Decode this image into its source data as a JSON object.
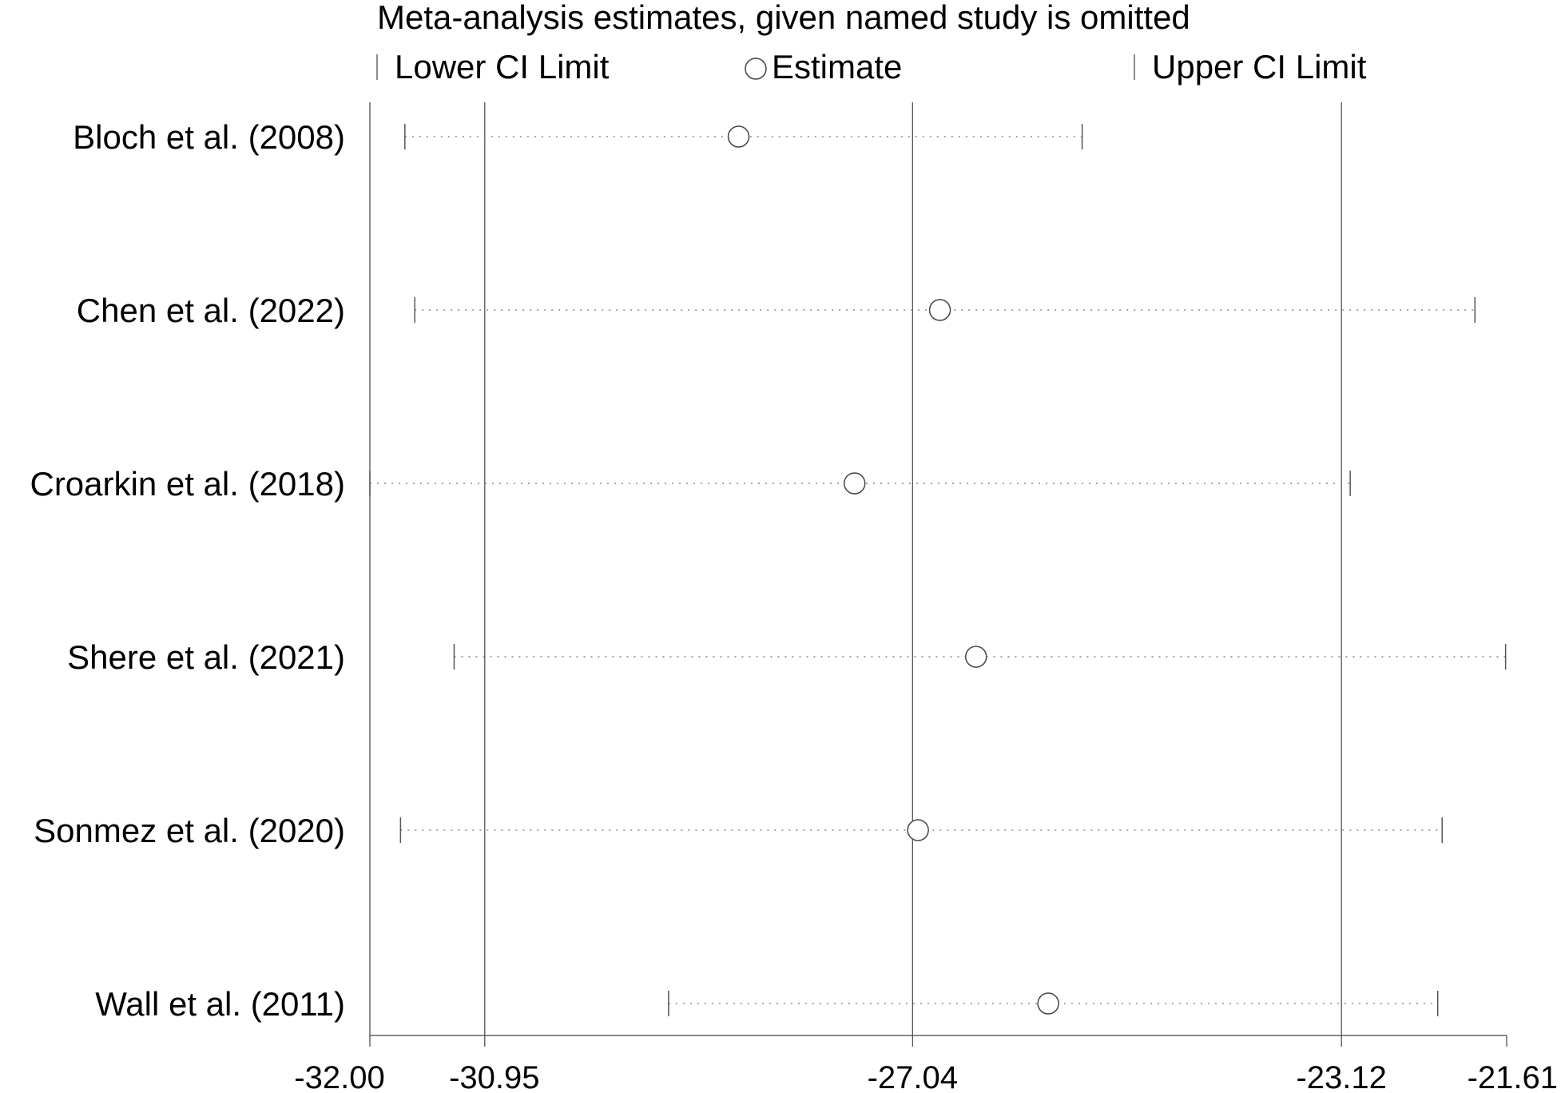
{
  "chart_data": {
    "type": "forest",
    "title": "Meta-analysis estimates, given named study is omitted",
    "legend": {
      "lower": "Lower CI Limit",
      "estimate": "Estimate",
      "upper": "Upper CI Limit"
    },
    "xlim": [
      -32.0,
      -21.61
    ],
    "xticks": [
      -32.0,
      -30.95,
      -27.04,
      -23.12,
      -21.61
    ],
    "xtick_labels": [
      "-32.00",
      "-30.95",
      "-27.04",
      "-23.12",
      "-21.61"
    ],
    "reference_lines": [
      -30.95,
      -27.04,
      -23.12
    ],
    "studies": [
      {
        "label": "Bloch et al. (2008)",
        "lower": -31.68,
        "estimate": -28.63,
        "upper": -25.49
      },
      {
        "label": "Chen et al. (2022)",
        "lower": -31.59,
        "estimate": -26.79,
        "upper": -21.9
      },
      {
        "label": "Croarkin et al. (2018)",
        "lower": -32.0,
        "estimate": -27.57,
        "upper": -23.04
      },
      {
        "label": "Shere et al. (2021)",
        "lower": -31.23,
        "estimate": -26.46,
        "upper": -21.62
      },
      {
        "label": "Sonmez et al. (2020)",
        "lower": -31.72,
        "estimate": -26.99,
        "upper": -22.2
      },
      {
        "label": "Wall et al. (2011)",
        "lower": -29.27,
        "estimate": -25.8,
        "upper": -22.24
      }
    ]
  }
}
